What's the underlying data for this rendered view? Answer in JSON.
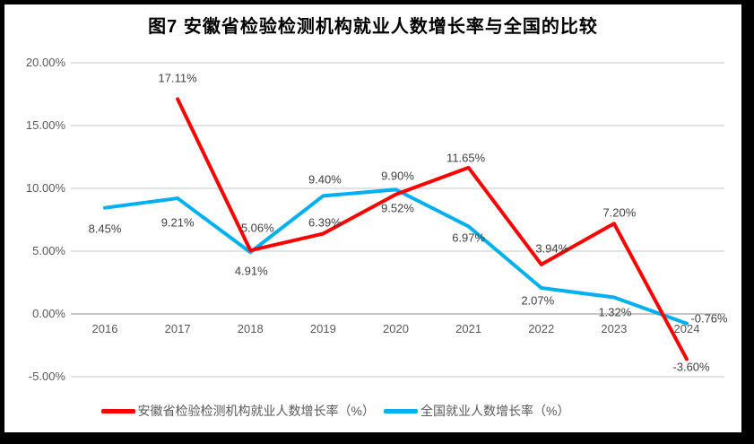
{
  "colors": {
    "frame": "#000000",
    "background": "#FFFFFF",
    "gridline": "#E2E2E2",
    "zero_axis": "#C6C6C6",
    "axis_text": "#595959",
    "data_label_text": "#404040"
  },
  "chart_data": {
    "type": "line",
    "title": "图7  安徽省检验检测机构就业人数增长率与全国的比较",
    "x_categories": [
      "2016",
      "2017",
      "2018",
      "2019",
      "2020",
      "2021",
      "2022",
      "2023",
      "2024"
    ],
    "y_ticks": [
      {
        "label": "20.00%",
        "value": 20
      },
      {
        "label": "15.00%",
        "value": 15
      },
      {
        "label": "10.00%",
        "value": 10
      },
      {
        "label": "5.00%",
        "value": 5
      },
      {
        "label": "0.00%",
        "value": 0
      },
      {
        "label": "-5.00%",
        "value": -5
      }
    ],
    "ylim": [
      -5,
      20
    ],
    "grid": true,
    "legend_position": "bottom",
    "series": [
      {
        "name": "安徽省检验检测机构就业人数增长率（%）",
        "short_name": "anhui",
        "color": "#FF0000",
        "points": [
          {
            "x": "2017",
            "value": 17.11,
            "label": "17.11%",
            "label_dx": 0,
            "label_dy": -23
          },
          {
            "x": "2018",
            "value": 5.06,
            "label": "5.06%",
            "label_dx": 8,
            "label_dy": -25
          },
          {
            "x": "2019",
            "value": 6.39,
            "label": "6.39%",
            "label_dx": 2,
            "label_dy": -13
          },
          {
            "x": "2020",
            "value": 9.52,
            "label": "9.52%",
            "label_dx": 2,
            "label_dy": 15
          },
          {
            "x": "2021",
            "value": 11.65,
            "label": "11.65%",
            "label_dx": -3,
            "label_dy": -11
          },
          {
            "x": "2022",
            "value": 3.94,
            "label": "3.94%",
            "label_dx": 12,
            "label_dy": -18
          },
          {
            "x": "2023",
            "value": 7.2,
            "label": "7.20%",
            "label_dx": 6,
            "label_dy": -12
          },
          {
            "x": "2024",
            "value": -3.6,
            "label": "-3.60%",
            "label_dx": 5,
            "label_dy": 9
          }
        ]
      },
      {
        "name": "全国就业人数增长率（%）",
        "short_name": "national",
        "color": "#00B0F0",
        "points": [
          {
            "x": "2016",
            "value": 8.45,
            "label": "8.45%",
            "label_dx": 0,
            "label_dy": 23
          },
          {
            "x": "2017",
            "value": 9.21,
            "label": "9.21%",
            "label_dx": 0,
            "label_dy": 27
          },
          {
            "x": "2018",
            "value": 4.91,
            "label": "4.91%",
            "label_dx": 1,
            "label_dy": 21
          },
          {
            "x": "2019",
            "value": 9.4,
            "label": "9.40%",
            "label_dx": 2,
            "label_dy": -18
          },
          {
            "x": "2020",
            "value": 9.9,
            "label": "9.90%",
            "label_dx": 2,
            "label_dy": -15
          },
          {
            "x": "2021",
            "value": 6.97,
            "label": "6.97%",
            "label_dx": 0,
            "label_dy": 13
          },
          {
            "x": "2022",
            "value": 2.07,
            "label": "2.07%",
            "label_dx": -4,
            "label_dy": 14
          },
          {
            "x": "2023",
            "value": 1.32,
            "label": "1.32%",
            "label_dx": 1,
            "label_dy": 16
          },
          {
            "x": "2024",
            "value": -0.76,
            "label": "-0.76%",
            "label_dx": 25,
            "label_dy": -6
          }
        ]
      }
    ]
  }
}
